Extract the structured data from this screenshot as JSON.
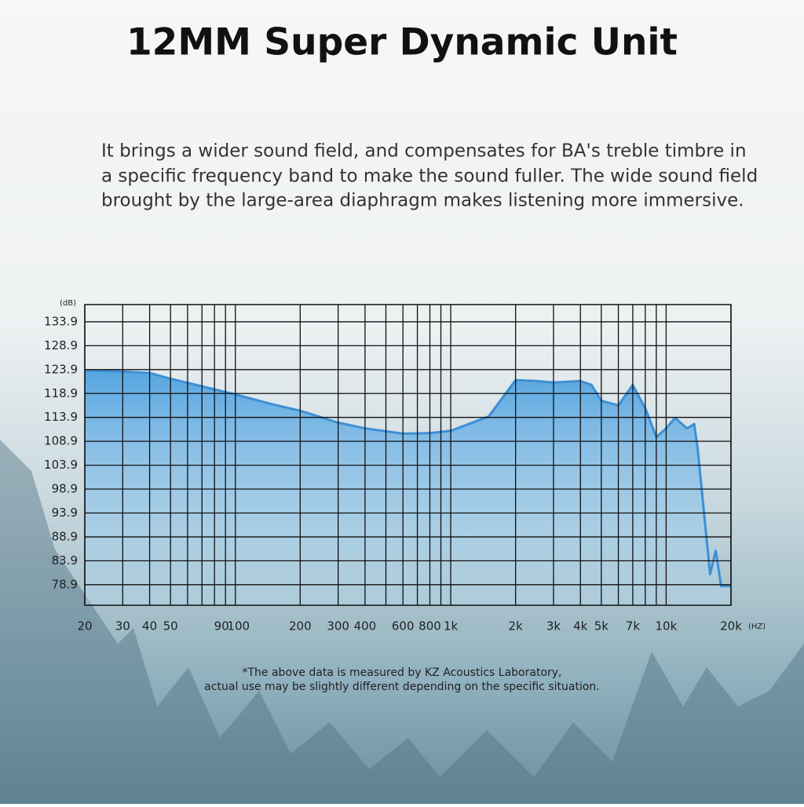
{
  "chart_data": {
    "type": "area-line",
    "title": "12MM Super Dynamic Unit",
    "subtitle": [
      "It brings a wider sound field, and compensates for BA's treble timbre in",
      "a specific frequency band to make the sound fuller. The wide sound field",
      "brought by the large-area diaphragm makes listening more immersive."
    ],
    "annotations": [
      "*The above data is measured by KZ Acoustics Laboratory,",
      "actual use may be slightly different depending on the specific situation."
    ],
    "ylabel": "(dB)",
    "xlabel": "(HZ)",
    "xscale": "log",
    "grid": true,
    "color": "#3d8fd4",
    "xlim": [
      20,
      20000
    ],
    "ylim": [
      74.6,
      137.5
    ],
    "xticks": [
      20,
      30,
      40,
      50,
      90,
      100,
      200,
      300,
      400,
      600,
      800,
      {
        "value": 1000,
        "label": "1k"
      },
      {
        "value": 2000,
        "label": "2k"
      },
      {
        "value": 3000,
        "label": "3k"
      },
      {
        "value": 4000,
        "label": "4k"
      },
      {
        "value": 5000,
        "label": "5k"
      },
      {
        "value": 7000,
        "label": "7k"
      },
      {
        "value": 10000,
        "label": "10k"
      },
      {
        "value": 20000,
        "label": "20k"
      }
    ],
    "xgrid": [
      60,
      70,
      80,
      500,
      700,
      900,
      6000,
      8000,
      9000
    ],
    "yticks": [
      133.9,
      128.9,
      123.9,
      118.9,
      113.9,
      108.9,
      103.9,
      98.9,
      93.9,
      88.9,
      83.9,
      78.9
    ],
    "x": [
      20,
      30,
      40,
      50,
      70,
      100,
      150,
      200,
      300,
      400,
      600,
      800,
      1000,
      1500,
      2000,
      2500,
      3000,
      4000,
      4500,
      5000,
      6000,
      7000,
      8000,
      9000,
      10000,
      11000,
      12500,
      13500,
      14000,
      16000,
      17000,
      18000,
      20000
    ],
    "values": [
      123.7,
      123.5,
      123.2,
      122.0,
      120.4,
      118.7,
      116.6,
      115.3,
      112.8,
      111.6,
      110.5,
      110.6,
      111.1,
      114.1,
      121.7,
      121.5,
      121.2,
      121.5,
      120.7,
      117.4,
      116.4,
      120.7,
      115.8,
      109.8,
      111.6,
      113.8,
      111.6,
      112.5,
      107.5,
      81.1,
      86.0,
      78.6,
      78.6
    ]
  }
}
